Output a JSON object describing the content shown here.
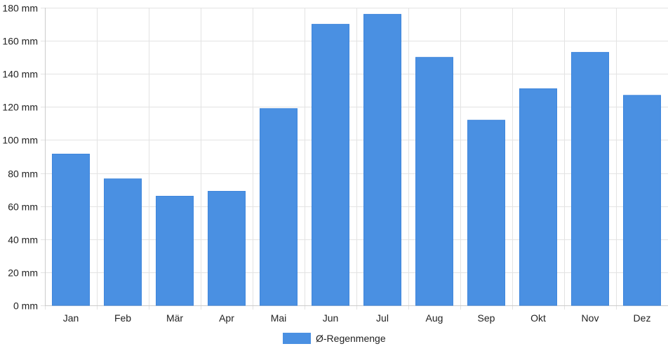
{
  "chart_data": {
    "type": "bar",
    "categories": [
      "Jan",
      "Feb",
      "Mär",
      "Apr",
      "Mai",
      "Jun",
      "Jul",
      "Aug",
      "Sep",
      "Okt",
      "Nov",
      "Dez"
    ],
    "series": [
      {
        "name": "Ø-Regenmenge",
        "color": "#4a90e2",
        "values": [
          91.5,
          76.5,
          66,
          69,
          119,
          170,
          176,
          150,
          112,
          131,
          153,
          127
        ]
      }
    ],
    "y_unit": "mm",
    "ylim": [
      0,
      180
    ],
    "y_ticks": [
      0,
      20,
      40,
      60,
      80,
      100,
      120,
      140,
      160,
      180
    ],
    "y_tick_labels": [
      "0 mm",
      "20 mm",
      "40 mm",
      "60 mm",
      "80 mm",
      "100 mm",
      "120 mm",
      "140 mm",
      "160 mm",
      "180 mm"
    ],
    "grid": true,
    "legend_position": "bottom-center",
    "grid_color": "#e3e3e3",
    "axis_color": "#cccccc"
  }
}
